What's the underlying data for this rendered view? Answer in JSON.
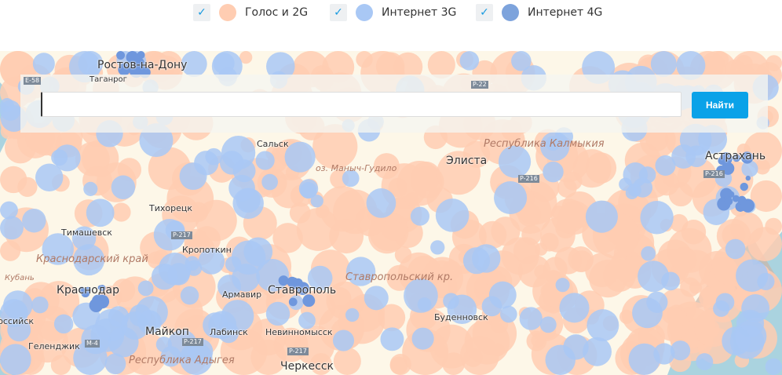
{
  "legend": [
    {
      "label": "Голос и 2G",
      "checked": true,
      "color": "#ffcdb2"
    },
    {
      "label": "Интернет 3G",
      "checked": true,
      "color": "#a9c8f5"
    },
    {
      "label": "Интернет 4G",
      "checked": true,
      "color": "#7da3dc"
    }
  ],
  "search": {
    "value": "",
    "button": "Найти"
  },
  "map": {
    "colors": {
      "land": "#fdf7e8",
      "sea": "#aad3df",
      "voice": "#ffcdb2",
      "g3": "#a9c8f5",
      "g4": "#6f97dd",
      "relief": "#c9b5a8"
    },
    "cities": [
      "Ростов-на-Дону",
      "Таганрог",
      "Сальск",
      "Элиста",
      "Астрахань",
      "Тихорецк",
      "Тимашевск",
      "Кропоткин",
      "Краснодар",
      "Армавир",
      "Ставрополь",
      "Буденновск",
      "Майкоп",
      "Лабинск",
      "Невинномысск",
      "Геленджик",
      "Новороссийск",
      "Черкесск"
    ],
    "regions": [
      "Республика Калмыкия",
      "Краснодарский край",
      "Ставропольский кр.",
      "Республика Адыгея"
    ],
    "water": [
      "оз. Маныч-Гудило",
      "Кубань"
    ],
    "roads": [
      "E-58",
      "P-22",
      "P-216",
      "P-217",
      "P-217",
      "P-217",
      "M-4",
      "P-216"
    ]
  }
}
